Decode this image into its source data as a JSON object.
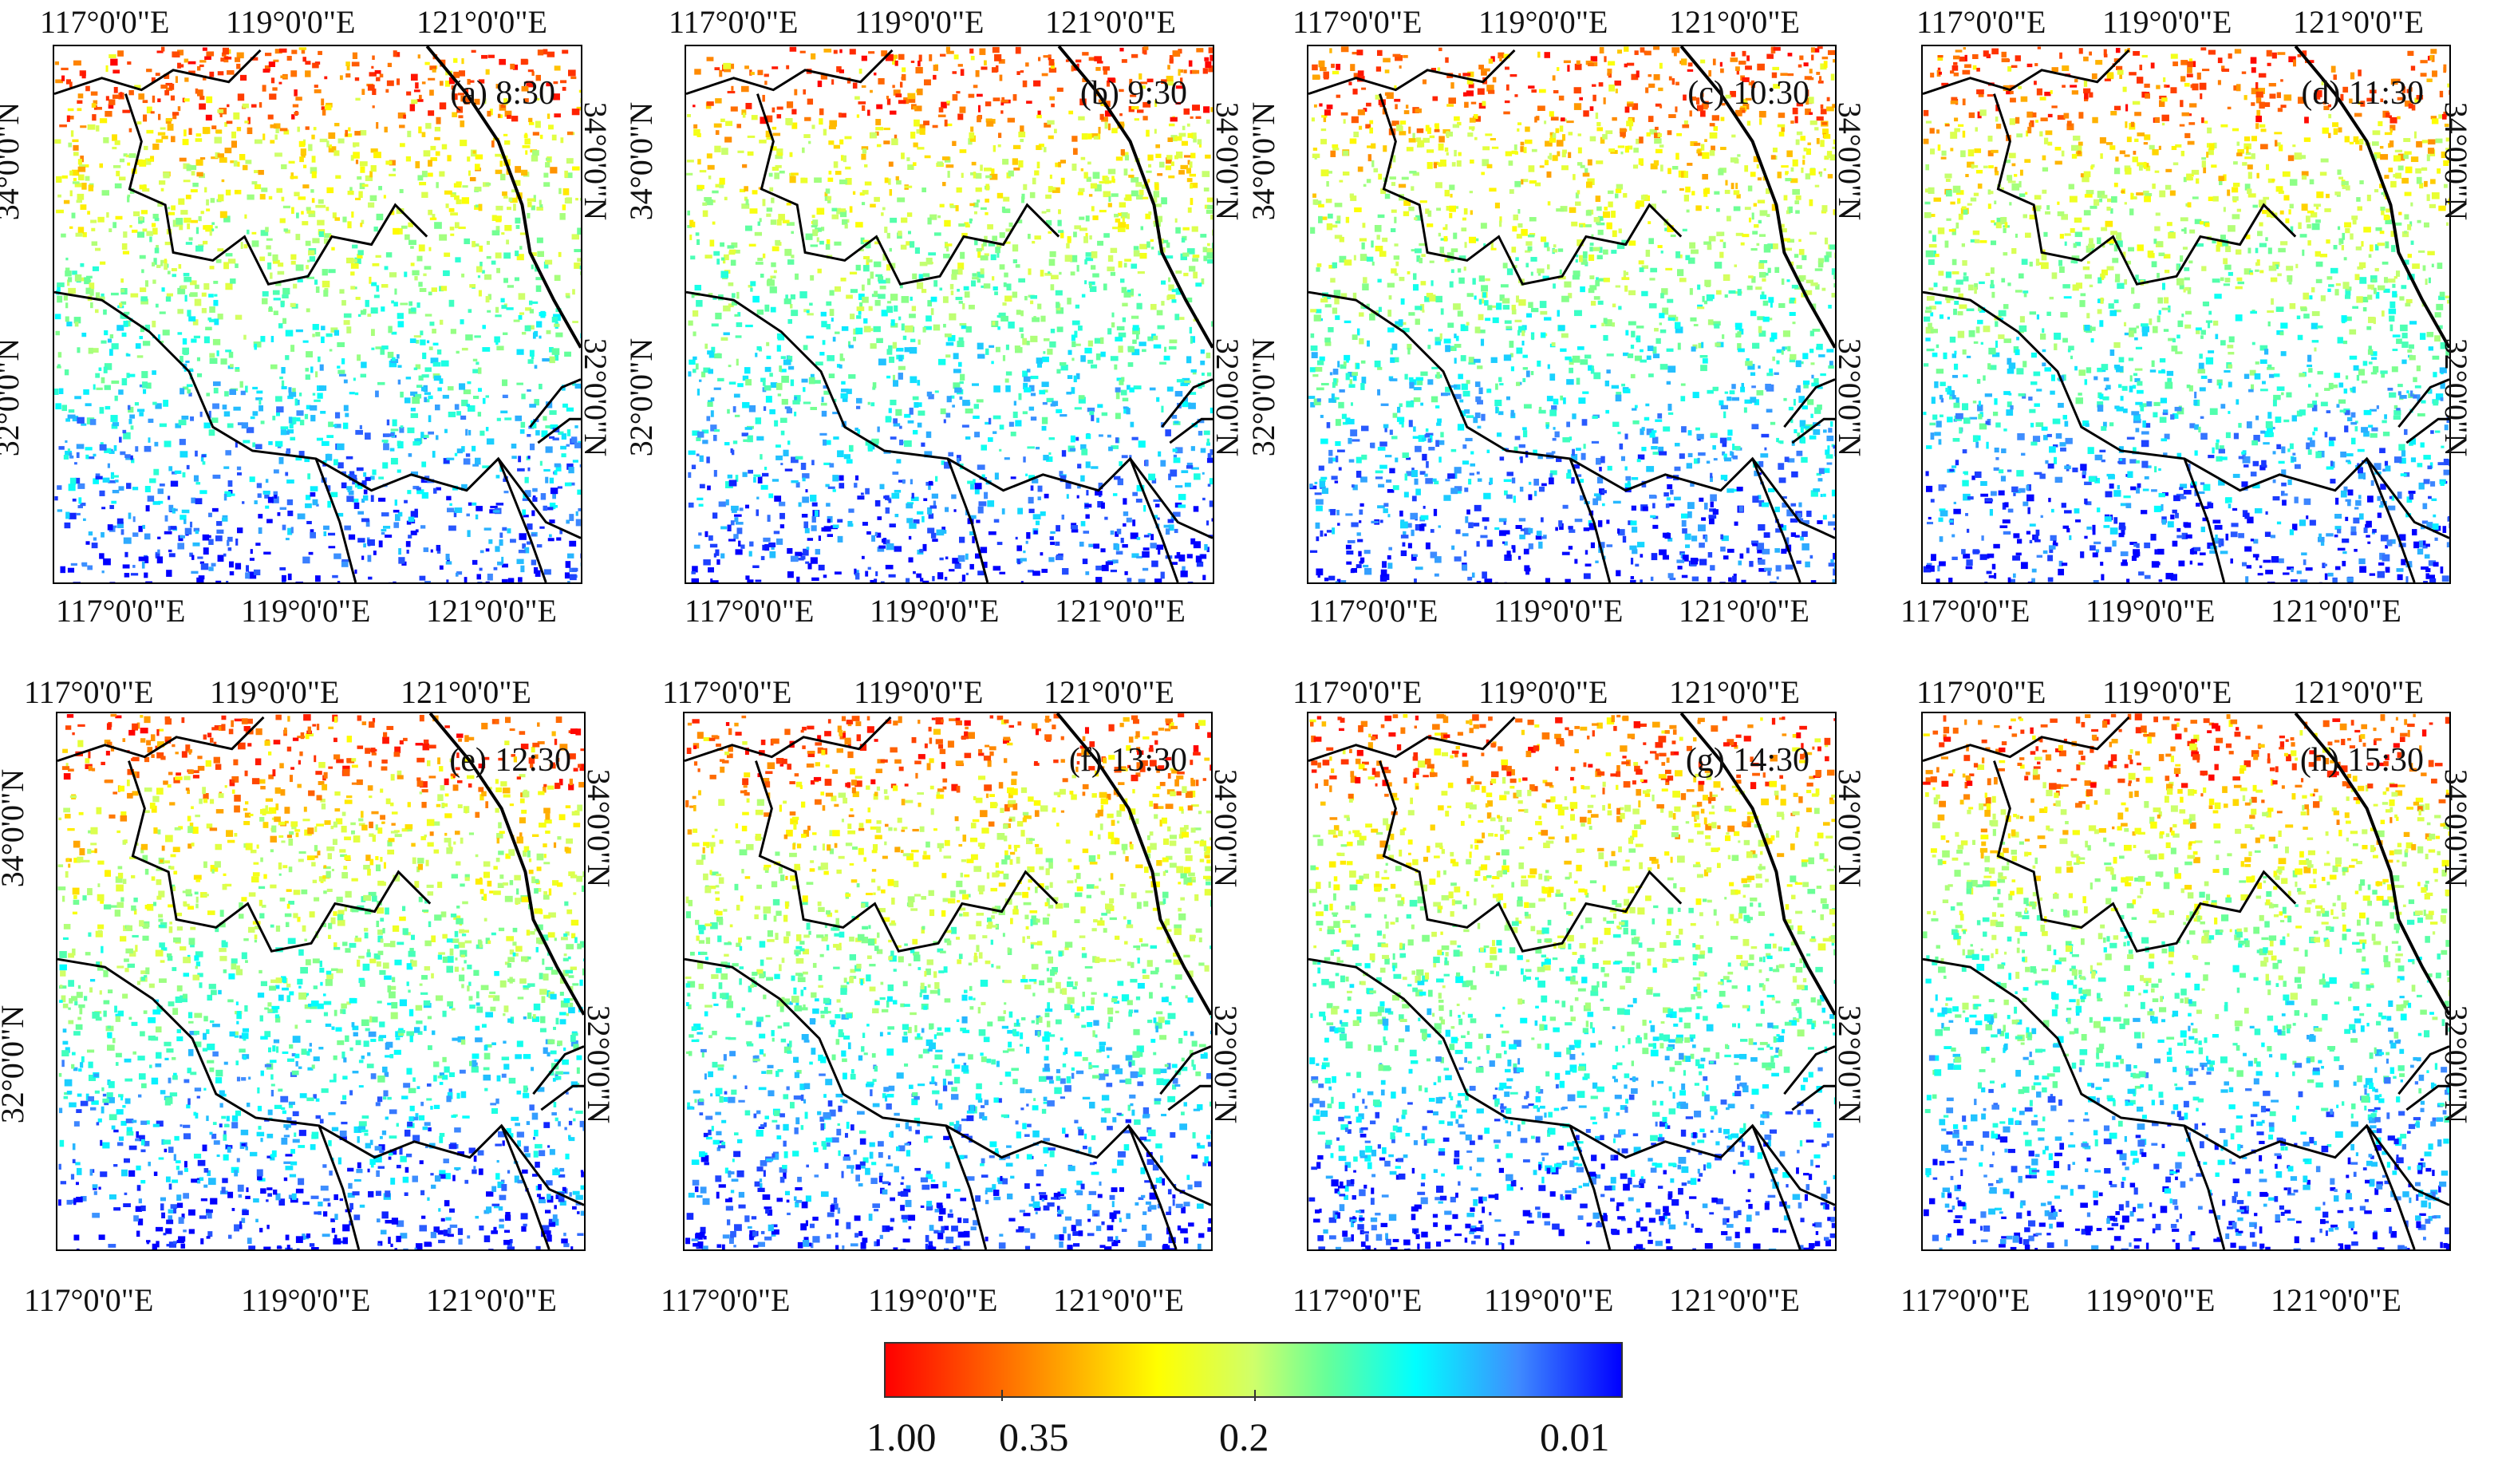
{
  "figure": {
    "panels": [
      {
        "label": "(a) 8:30",
        "top_ticks": [
          "117°0'0\"E",
          "119°0'0\"E",
          "121°0'0\"E"
        ],
        "bottom_ticks": [
          "117°0'0\"E",
          "119°0'0\"E",
          "121°0'0\"E"
        ],
        "lat_ticks": [
          "34°0'0\"N",
          "32°0'0\"N"
        ]
      },
      {
        "label": "(b) 9:30",
        "top_ticks": [
          "117°0'0\"E",
          "119°0'0\"E",
          "121°0'0\"E"
        ],
        "bottom_ticks": [
          "117°0'0\"E",
          "119°0'0\"E",
          "121°0'0\"E"
        ],
        "lat_ticks": [
          "34°0'0\"N",
          "32°0'0\"N"
        ]
      },
      {
        "label": "(c) 10:30",
        "top_ticks": [
          "117°0'0\"E",
          "119°0'0\"E",
          "121°0'0\"E"
        ],
        "bottom_ticks": [
          "117°0'0\"E",
          "119°0'0\"E",
          "121°0'0\"E"
        ],
        "lat_ticks": [
          "34°0'0\"N",
          "32°0'0\"N"
        ]
      },
      {
        "label": "(d) 11:30",
        "top_ticks": [
          "117°0'0\"E",
          "119°0'0\"E",
          "121°0'0\"E"
        ],
        "bottom_ticks": [
          "117°0'0\"E",
          "119°0'0\"E",
          "121°0'0\"E"
        ],
        "lat_ticks": [
          "34°0'0\"N",
          "32°0'0\"N"
        ]
      },
      {
        "label": "(e) 12:30",
        "top_ticks": [
          "117°0'0\"E",
          "119°0'0\"E",
          "121°0'0\"E"
        ],
        "bottom_ticks": [
          "117°0'0\"E",
          "119°0'0\"E",
          "121°0'0\"E"
        ],
        "lat_ticks": [
          "34°0'0\"N",
          "32°0'0\"N"
        ]
      },
      {
        "label": "(f) 13:30",
        "top_ticks": [
          "117°0'0\"E",
          "119°0'0\"E",
          "121°0'0\"E"
        ],
        "bottom_ticks": [
          "117°0'0\"E",
          "119°0'0\"E",
          "121°0'0\"E"
        ],
        "lat_ticks": [
          "34°0'0\"N",
          "32°0'0\"N"
        ]
      },
      {
        "label": "(g) 14:30",
        "top_ticks": [
          "117°0'0\"E",
          "119°0'0\"E",
          "121°0'0\"E"
        ],
        "bottom_ticks": [
          "117°0'0\"E",
          "119°0'0\"E",
          "121°0'0\"E"
        ],
        "lat_ticks": [
          "34°0'0\"N",
          "32°0'0\"N"
        ]
      },
      {
        "label": "(h) 15:30",
        "top_ticks": [
          "117°0'0\"E",
          "119°0'0\"E",
          "121°0'0\"E"
        ],
        "bottom_ticks": [
          "117°0'0\"E",
          "119°0'0\"E",
          "121°0'0\"E"
        ],
        "lat_ticks": [
          "34°0'0\"N",
          "32°0'0\"N"
        ]
      }
    ],
    "colorbar": {
      "labels": [
        "1.00",
        "0.35",
        "0.2",
        "0.01"
      ],
      "colors": [
        "#ff0000",
        "#ff7a00",
        "#ffff00",
        "#cfff6a",
        "#66ff99",
        "#00ffff",
        "#3f8bff",
        "#0000ff"
      ]
    }
  }
}
